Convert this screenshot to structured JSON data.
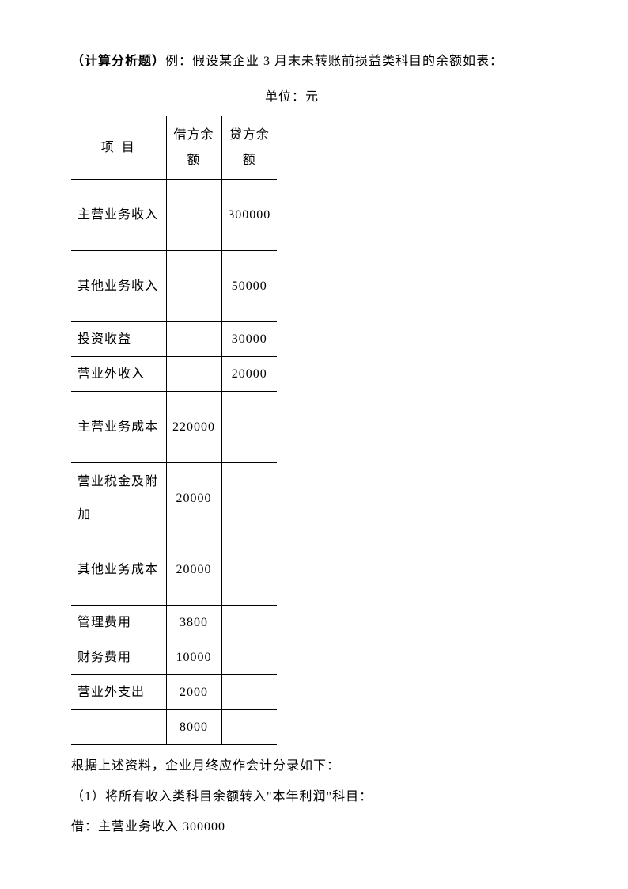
{
  "title_prefix": "（计算分析题）",
  "title_rest": "例：假设某企业 3 月末未转账前损益类科目的余额如表：",
  "unit": "单位：元",
  "table": {
    "headers": {
      "item": "项目",
      "debit": "借方余额",
      "credit": "贷方余额"
    },
    "rows": [
      {
        "item": "主营业务收入",
        "debit": "",
        "credit": "300000"
      },
      {
        "item": "其他业务收入",
        "debit": "",
        "credit": "50000"
      },
      {
        "item": "投资收益",
        "debit": "",
        "credit": "30000"
      },
      {
        "item": "营业外收入",
        "debit": "",
        "credit": "20000"
      },
      {
        "item": "主营业务成本",
        "debit": "220000",
        "credit": ""
      },
      {
        "item": "营业税金及附加",
        "debit": "20000",
        "credit": ""
      },
      {
        "item": "其他业务成本",
        "debit": "20000",
        "credit": ""
      },
      {
        "item": "管理费用",
        "debit": "3800",
        "credit": ""
      },
      {
        "item": "财务费用",
        "debit": "10000",
        "credit": ""
      },
      {
        "item": "营业外支出",
        "debit": "2000",
        "credit": ""
      },
      {
        "item": "",
        "debit": "8000",
        "credit": ""
      }
    ]
  },
  "para1": "根据上述资料，企业月终应作会计分录如下：",
  "para2": "（1）将所有收入类科目余额转入\"本年利润\"科目：",
  "para3": "借：主营业务收入 300000",
  "style": {
    "background_color": "#ffffff",
    "text_color": "#000000",
    "border_color": "#000000",
    "font_family": "SimSun",
    "body_fontsize": 16,
    "col_widths": {
      "item": 120,
      "debit": 70,
      "credit": 70
    }
  }
}
